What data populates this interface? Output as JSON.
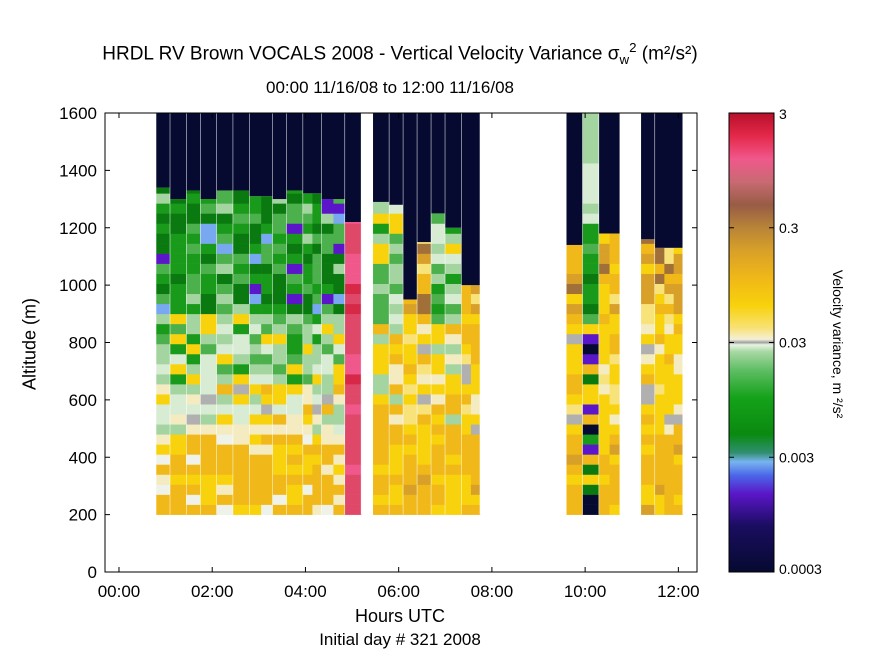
{
  "chart_data": {
    "type": "heatmap",
    "title": "HRDL RV Brown VOCALS 2008 - Vertical Velocity Variance",
    "title_symbol": "σ",
    "title_symbol_sub": "w",
    "title_symbol_sup": "2",
    "title_units": "(m²/s²)",
    "subtitle": "00:00 11/16/08 to 12:00 11/16/08",
    "xlabel": "Hours UTC",
    "ylabel": "Altitude (m)",
    "footer": "Initial day # 321  2008",
    "colorbar_label": "Velocity variance, m ²/s²",
    "x_range_hours": [
      -0.3,
      12.4
    ],
    "y_range_m": [
      0,
      1600
    ],
    "x_ticks": [
      {
        "value": 0,
        "label": "00:00"
      },
      {
        "value": 2,
        "label": "02:00"
      },
      {
        "value": 4,
        "label": "04:00"
      },
      {
        "value": 6,
        "label": "06:00"
      },
      {
        "value": 8,
        "label": "08:00"
      },
      {
        "value": 10,
        "label": "10:00"
      },
      {
        "value": 12,
        "label": "12:00"
      }
    ],
    "y_ticks": [
      0,
      200,
      400,
      600,
      800,
      1000,
      1200,
      1400,
      1600
    ],
    "colorbar": {
      "scale": "log",
      "range": [
        0.0003,
        3
      ],
      "ticks": [
        {
          "value": 3,
          "label": "3"
        },
        {
          "value": 0.3,
          "label": "0.3"
        },
        {
          "value": 0.03,
          "label": "0.03"
        },
        {
          "value": 0.003,
          "label": "0.003"
        },
        {
          "value": 0.0003,
          "label": "0.0003"
        }
      ]
    },
    "gate_altitudes_m": [
      200,
      1600
    ],
    "gate_step_m": 35,
    "profiles": [
      {
        "t": [
          0.8,
          1.1
        ],
        "top": 1340,
        "profile": "green",
        "seed": 1
      },
      {
        "t": [
          1.1,
          1.45
        ],
        "top": 1300,
        "profile": "green",
        "seed": 2
      },
      {
        "t": [
          1.45,
          1.75
        ],
        "top": 1330,
        "profile": "green",
        "seed": 3
      },
      {
        "t": [
          1.75,
          2.1
        ],
        "top": 1300,
        "profile": "green",
        "seed": 4
      },
      {
        "t": [
          2.1,
          2.45
        ],
        "top": 1330,
        "profile": "green",
        "seed": 5
      },
      {
        "t": [
          2.45,
          2.8
        ],
        "top": 1330,
        "profile": "green",
        "seed": 6
      },
      {
        "t": [
          2.8,
          3.3
        ],
        "top": 1310,
        "profile": "green",
        "seed": 7
      },
      {
        "t": [
          3.3,
          3.6
        ],
        "top": 1300,
        "profile": "green",
        "seed": 8
      },
      {
        "t": [
          3.6,
          3.95
        ],
        "top": 1330,
        "profile": "green",
        "seed": 9
      },
      {
        "t": [
          3.95,
          4.35
        ],
        "top": 1320,
        "profile": "green",
        "seed": 10
      },
      {
        "t": [
          4.35,
          4.85
        ],
        "top": 1300,
        "profile": "purple",
        "seed": 11
      },
      {
        "t": [
          4.85,
          5.2
        ],
        "top": 1220,
        "profile": "pink",
        "seed": 12
      },
      {
        "t": [
          5.45,
          5.8
        ],
        "top": 1290,
        "profile": "mixed",
        "seed": 13
      },
      {
        "t": [
          5.8,
          6.1
        ],
        "top": 1280,
        "profile": "mixed",
        "seed": 14
      },
      {
        "t": [
          6.1,
          6.4
        ],
        "top": 950,
        "profile": "yellow",
        "seed": 15
      },
      {
        "t": [
          6.4,
          6.7
        ],
        "top": 1150,
        "profile": "yellow",
        "seed": 16
      },
      {
        "t": [
          6.7,
          7.0
        ],
        "top": 1250,
        "profile": "mixed",
        "seed": 17
      },
      {
        "t": [
          7.0,
          7.35
        ],
        "top": 1200,
        "profile": "mixed",
        "seed": 18
      },
      {
        "t": [
          7.35,
          7.75
        ],
        "top": 1000,
        "profile": "yellow",
        "seed": 19
      },
      {
        "t": [
          9.6,
          9.95
        ],
        "top": 1140,
        "profile": "yellow",
        "seed": 20
      },
      {
        "t": [
          9.95,
          10.3
        ],
        "top": 1600,
        "profile": "multi",
        "seed": 21
      },
      {
        "t": [
          10.3,
          10.75
        ],
        "top": 1180,
        "profile": "yellow",
        "seed": 22
      },
      {
        "t": [
          11.2,
          11.5
        ],
        "top": 1160,
        "profile": "yellow",
        "seed": 23
      },
      {
        "t": [
          11.5,
          12.1
        ],
        "top": 1130,
        "profile": "yellow",
        "seed": 24
      }
    ]
  }
}
